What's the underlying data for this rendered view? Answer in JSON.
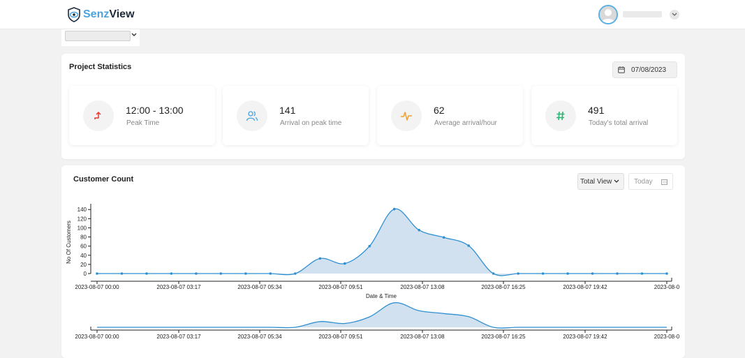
{
  "brand": {
    "part1": "Senz",
    "part2": "View",
    "color1": "#4aa3df",
    "color2": "#1e2a3a"
  },
  "header": {
    "avatar_icon": "user-avatar-icon",
    "menu_icon": "chevron-down-icon"
  },
  "project_stats": {
    "title": "Project Statistics",
    "date": "07/08/2023",
    "cards": [
      {
        "value": "12:00 - 13:00",
        "label": "Peak Time",
        "icon": "trend-up-arrow-icon",
        "color": "#e53935"
      },
      {
        "value": "141",
        "label": "Arrival on peak time",
        "icon": "users-icon",
        "color": "#4aa3df"
      },
      {
        "value": "62",
        "label": "Average arrival/hour",
        "icon": "pulse-icon",
        "color": "#f0a030"
      },
      {
        "value": "491",
        "label": "Today's total arrival",
        "icon": "hash-icon",
        "color": "#2bb673"
      }
    ]
  },
  "customer_count": {
    "title": "Customer Count",
    "view_select": "Total View",
    "date_button": "Today"
  },
  "chart_data": {
    "type": "area",
    "xlabel": "Date & Time",
    "ylabel": "No Of Customers",
    "ylim": [
      0,
      148
    ],
    "yticks": [
      0,
      20,
      40,
      60,
      80,
      100,
      120,
      140
    ],
    "x_tick_labels": [
      "2023-08-07 00:00",
      "2023-08-07 03:17",
      "2023-08-07 05:34",
      "2023-08-07 09:51",
      "2023-08-07 13:08",
      "2023-08-07 16:25",
      "2023-08-07 19:42",
      "2023-08-0"
    ],
    "x": [
      "2023-08-07 00:00",
      "2023-08-07 01:00",
      "2023-08-07 02:00",
      "2023-08-07 03:00",
      "2023-08-07 04:00",
      "2023-08-07 05:00",
      "2023-08-07 06:00",
      "2023-08-07 07:00",
      "2023-08-07 08:00",
      "2023-08-07 09:00",
      "2023-08-07 10:00",
      "2023-08-07 11:00",
      "2023-08-07 12:00",
      "2023-08-07 13:00",
      "2023-08-07 14:00",
      "2023-08-07 15:00",
      "2023-08-07 16:00",
      "2023-08-07 17:00",
      "2023-08-07 18:00",
      "2023-08-07 19:00",
      "2023-08-07 20:00",
      "2023-08-07 21:00",
      "2023-08-07 22:00",
      "2023-08-07 23:00"
    ],
    "series": [
      {
        "values": [
          0,
          0,
          0,
          0,
          0,
          0,
          0,
          0,
          0,
          33,
          22,
          60,
          141,
          95,
          79,
          61,
          0,
          0,
          0,
          0,
          0,
          0,
          0,
          0
        ],
        "color": "#2e8fd1"
      }
    ],
    "grid": false
  }
}
